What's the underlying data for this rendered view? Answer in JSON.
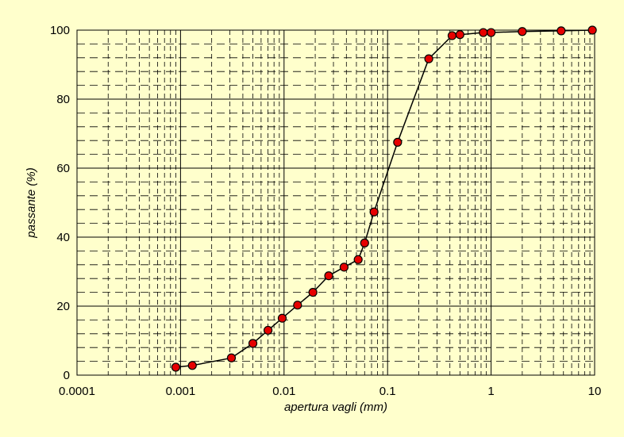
{
  "chart_data": {
    "type": "scatter",
    "mode": "lines+markers",
    "xscale": "log",
    "xlabel": "apertura vagli (mm)",
    "ylabel": "passante (%)",
    "xlim": [
      0.0001,
      10
    ],
    "ylim": [
      0,
      100
    ],
    "grid": "major solid, minor dashed",
    "x_tick_labels": [
      "0.0001",
      "0.001",
      "0.01",
      "0.1",
      "1",
      "10"
    ],
    "y_tick_labels": [
      "0",
      "20",
      "40",
      "60",
      "80",
      "100"
    ],
    "series": [
      {
        "x": [
          0.0009,
          0.0013,
          0.0031,
          0.005,
          0.007,
          0.0096,
          0.0135,
          0.019,
          0.027,
          0.038,
          0.052,
          0.06,
          0.074,
          0.125,
          0.25,
          0.42,
          0.5,
          0.84,
          1.0,
          2.0,
          4.75,
          9.5
        ],
        "values": [
          2.3,
          2.8,
          5.0,
          9.2,
          13.0,
          16.5,
          20.3,
          24.0,
          28.8,
          31.3,
          33.5,
          38.3,
          47.3,
          67.5,
          91.7,
          98.4,
          98.7,
          99.3,
          99.3,
          99.6,
          99.8,
          100.0
        ]
      }
    ],
    "colors": {
      "background": "#FFFFCC",
      "plot_area": "#FFFFCC",
      "line": "#000000",
      "marker_fill": "#E60000",
      "marker_edge": "#000000"
    }
  }
}
